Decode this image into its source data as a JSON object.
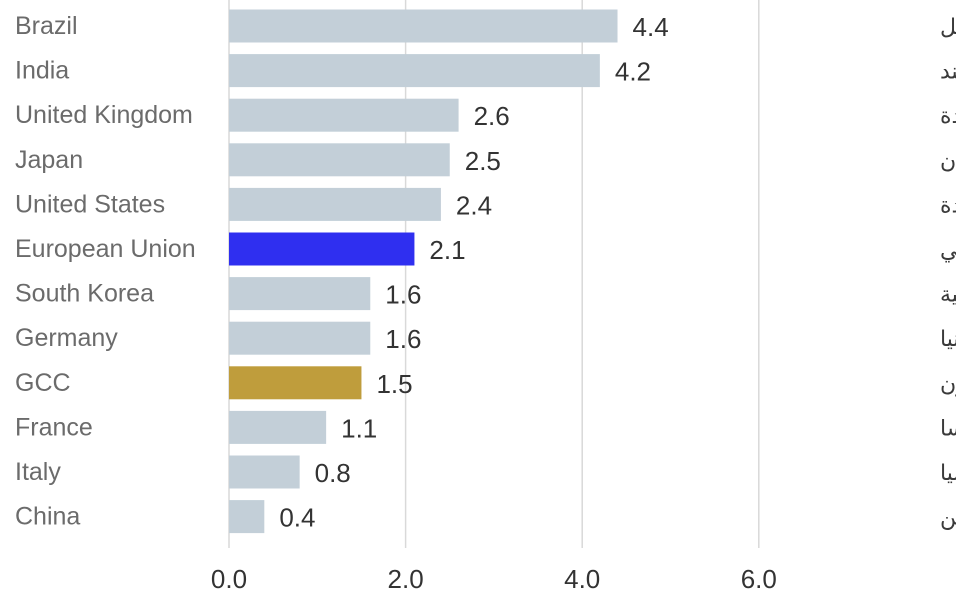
{
  "chart_data": {
    "type": "bar",
    "orientation": "horizontal",
    "categories": [
      "Brazil",
      "India",
      "United Kingdom",
      "Japan",
      "United States",
      "European Union",
      "South Korea",
      "Germany",
      "GCC",
      "France",
      "Italy",
      "China"
    ],
    "categories_ar": [
      "البرازيل",
      "الهند",
      "المملكة المتحدة",
      "اليابان",
      "الولايات المتحدة",
      "الاتحاد الأوروبي",
      "كوريا الجنوبية",
      "ألمانيا",
      "مجلس التعاون",
      "فرنسا",
      "إيطاليا",
      "الصين"
    ],
    "values": [
      4.4,
      4.2,
      2.6,
      2.5,
      2.4,
      2.1,
      1.6,
      1.6,
      1.5,
      1.1,
      0.8,
      0.4
    ],
    "value_labels": [
      "4.4",
      "4.2",
      "2.6",
      "2.5",
      "2.4",
      "2.1",
      "1.6",
      "1.6",
      "1.5",
      "1.1",
      "0.8",
      "0.4"
    ],
    "xlim": [
      0,
      6
    ],
    "x_ticks": [
      0,
      2,
      4,
      6
    ],
    "x_tick_labels": [
      "0.0",
      "2.0",
      "4.0",
      "6.0"
    ],
    "grid": true,
    "colors": {
      "default": "#c3cfd8",
      "highlight_eu": "#2f2ff0",
      "highlight_gcc": "#bf9d3c"
    },
    "bar_colors": [
      "default",
      "default",
      "default",
      "default",
      "default",
      "highlight_eu",
      "default",
      "default",
      "highlight_gcc",
      "default",
      "default",
      "default"
    ]
  }
}
